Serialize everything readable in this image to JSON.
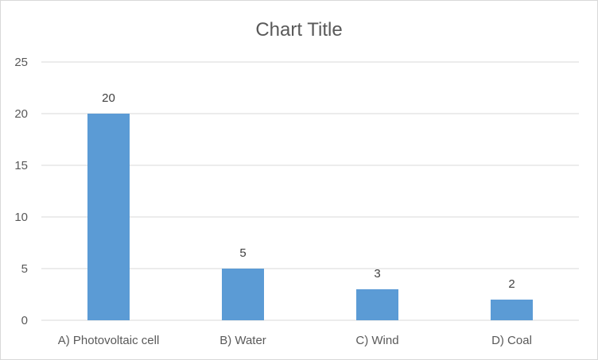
{
  "chart_data": {
    "type": "bar",
    "title": "Chart Title",
    "categories": [
      "A) Photovoltaic cell",
      "B) Water",
      "C) Wind",
      "D) Coal"
    ],
    "values": [
      20,
      5,
      3,
      2
    ],
    "ylim": [
      0,
      25
    ],
    "yticks": [
      0,
      5,
      10,
      15,
      20,
      25
    ],
    "grid": true,
    "legend": "none",
    "bar_color": "#5b9bd5",
    "xlabel": "",
    "ylabel": ""
  }
}
